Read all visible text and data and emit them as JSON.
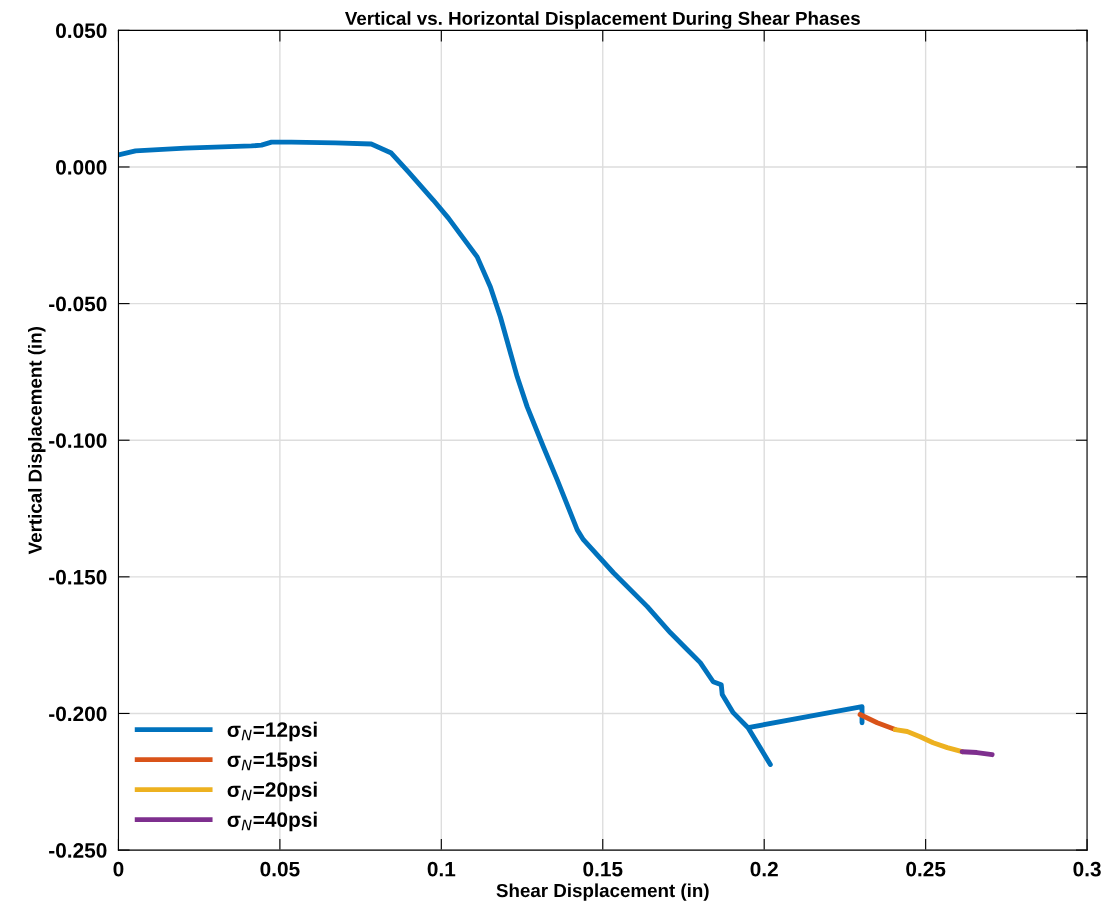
{
  "chart_data": {
    "type": "line",
    "title": "Vertical vs. Horizontal Displacement During Shear Phases",
    "xlabel": "Shear Displacement (in)",
    "ylabel": "Vertical Displacement (in)",
    "xlim": [
      0,
      0.3
    ],
    "ylim": [
      -0.25,
      0.05
    ],
    "xticks": [
      0,
      0.05,
      0.1,
      0.15,
      0.2,
      0.25,
      0.3
    ],
    "yticks": [
      {
        "value": -0.25,
        "label": "-0.250"
      },
      {
        "value": -0.2,
        "label": "-0.200"
      },
      {
        "value": -0.15,
        "label": "-0.150"
      },
      {
        "value": -0.1,
        "label": "-0.100"
      },
      {
        "value": -0.05,
        "label": "-0.050"
      },
      {
        "value": 0,
        "label": "0.000"
      },
      {
        "value": 0.05,
        "label": "0.050"
      }
    ],
    "grid": true,
    "legend": "bottom left",
    "marker": "none",
    "line_style": "solid",
    "series": [
      {
        "name": "σ$_{N}$=12psi",
        "color": "#0072bd",
        "x": [
          0,
          0.0053,
          0.0207,
          0.0412,
          0.0443,
          0.0474,
          0.0536,
          0.0672,
          0.0783,
          0.0845,
          0.0898,
          0.0975,
          0.1022,
          0.1111,
          0.1152,
          0.1183,
          0.1235,
          0.1266,
          0.1316,
          0.1359,
          0.1421,
          0.144,
          0.1533,
          0.1638,
          0.1709,
          0.1762,
          0.1802,
          0.1842,
          0.1867,
          0.187,
          0.1904,
          0.195,
          0.2019,
          0.195,
          0.2303,
          0.2303
        ],
        "values": [
          0.0044,
          0.0059,
          0.0069,
          0.0077,
          0.008,
          0.0091,
          0.0091,
          0.0088,
          0.0084,
          0.0051,
          -0.0018,
          -0.0121,
          -0.0187,
          -0.0329,
          -0.0439,
          -0.0549,
          -0.0768,
          -0.0878,
          -0.1024,
          -0.1145,
          -0.1328,
          -0.1364,
          -0.1485,
          -0.1609,
          -0.1704,
          -0.1767,
          -0.1814,
          -0.1884,
          -0.1895,
          -0.1931,
          -0.1997,
          -0.2052,
          -0.2187,
          -0.2052,
          -0.1975,
          -0.2034
        ]
      },
      {
        "name": "σ$_{N}$=15psi",
        "color": "#d95319",
        "x": [
          0.2297,
          0.235,
          0.2406
        ],
        "values": [
          -0.2004,
          -0.2034,
          -0.2059
        ]
      },
      {
        "name": "σ$_{N}$=20psi",
        "color": "#edb120",
        "x": [
          0.2406,
          0.2443,
          0.2483,
          0.2523,
          0.2567,
          0.2613
        ],
        "values": [
          -0.2059,
          -0.2066,
          -0.2085,
          -0.2107,
          -0.2125,
          -0.214
        ]
      },
      {
        "name": "σ$_{N}$=40psi",
        "color": "#7e2f8e",
        "x": [
          0.2613,
          0.2659,
          0.2706
        ],
        "values": [
          -0.214,
          -0.2143,
          -0.2151
        ]
      }
    ]
  }
}
